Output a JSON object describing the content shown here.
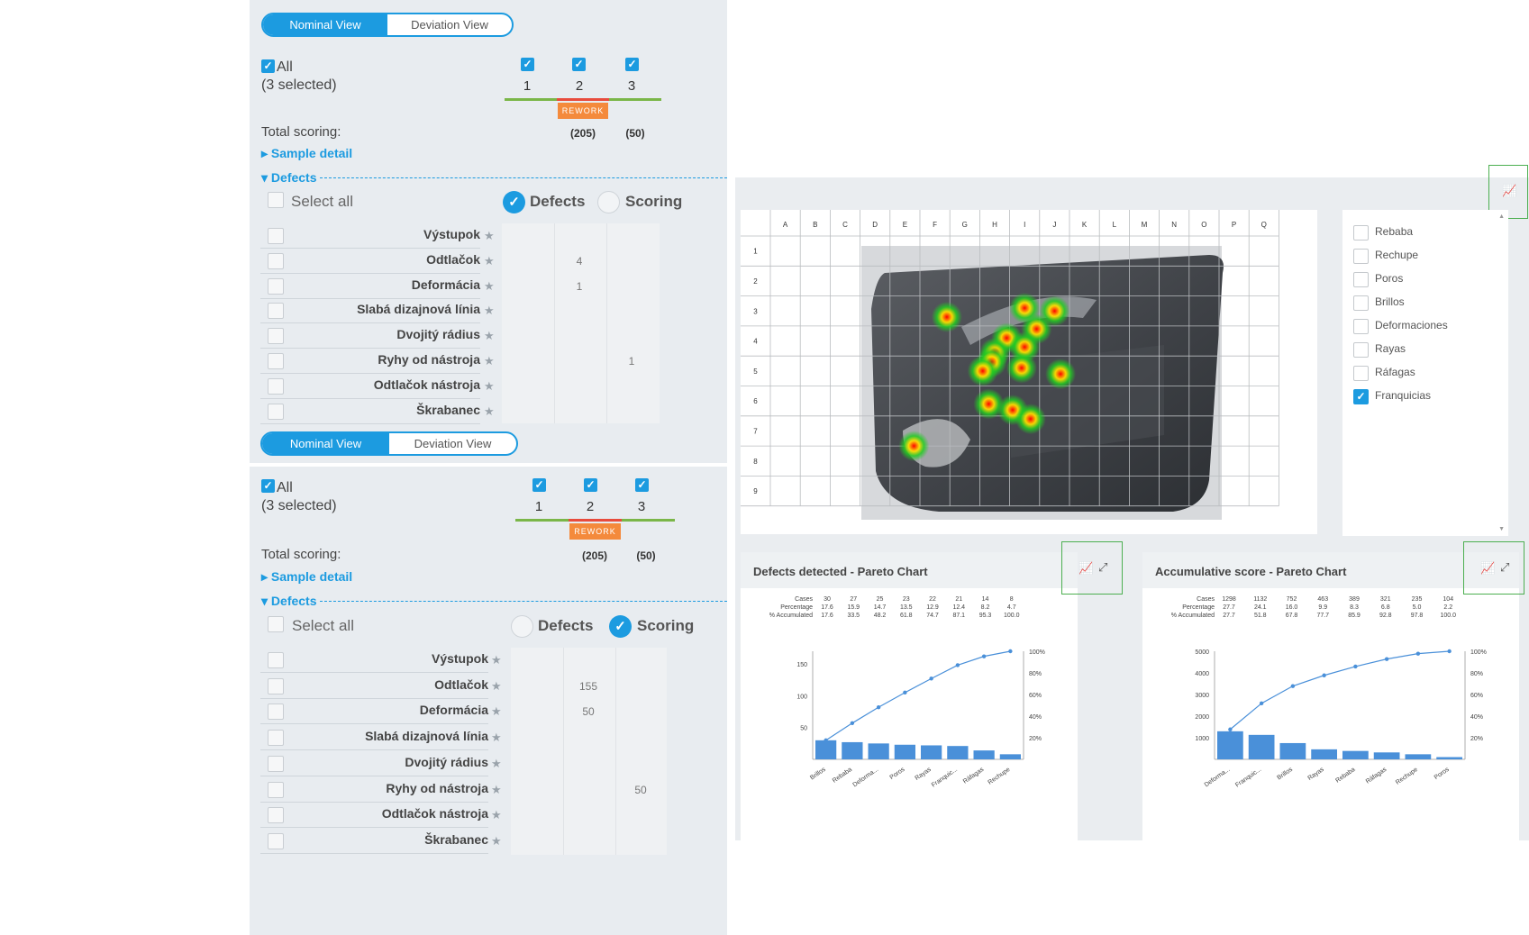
{
  "panels": [
    {
      "toggle": {
        "nominal": "Nominal View",
        "deviation": "Deviation View"
      },
      "all_label": "All",
      "selected_label": "(3 selected)",
      "samples": [
        "1",
        "2",
        "3"
      ],
      "rework": "REWORK",
      "total_label": "Total scoring:",
      "totals": [
        "(205)",
        "(50)"
      ],
      "sample_detail": "Sample detail",
      "defects_header": "Defects",
      "select_all": "Select all",
      "mode_defects": "Defects",
      "mode_scoring": "Scoring",
      "active_mode": "Defects",
      "rows": [
        {
          "name": "Výstupok",
          "values": [
            "",
            "",
            ""
          ]
        },
        {
          "name": "Odtlačok",
          "values": [
            "",
            "4",
            ""
          ]
        },
        {
          "name": "Deformácia",
          "values": [
            "",
            "1",
            ""
          ]
        },
        {
          "name": "Slabá dizajnová línia",
          "values": [
            "",
            "",
            ""
          ]
        },
        {
          "name": "Dvojitý rádius",
          "values": [
            "",
            "",
            ""
          ]
        },
        {
          "name": "Ryhy od nástroja",
          "values": [
            "",
            "",
            "1"
          ]
        },
        {
          "name": "Odtlačok nástroja",
          "values": [
            "",
            "",
            ""
          ]
        },
        {
          "name": "Škrabanec",
          "values": [
            "",
            "",
            ""
          ]
        }
      ]
    },
    {
      "toggle": {
        "nominal": "Nominal View",
        "deviation": "Deviation View"
      },
      "all_label": "All",
      "selected_label": "(3 selected)",
      "samples": [
        "1",
        "2",
        "3"
      ],
      "rework": "REWORK",
      "total_label": "Total scoring:",
      "totals": [
        "(205)",
        "(50)"
      ],
      "sample_detail": "Sample detail",
      "defects_header": "Defects",
      "select_all": "Select all",
      "mode_defects": "Defects",
      "mode_scoring": "Scoring",
      "active_mode": "Scoring",
      "rows": [
        {
          "name": "Výstupok",
          "values": [
            "",
            "",
            ""
          ]
        },
        {
          "name": "Odtlačok",
          "values": [
            "",
            "155",
            ""
          ]
        },
        {
          "name": "Deformácia",
          "values": [
            "",
            "50",
            ""
          ]
        },
        {
          "name": "Slabá dizajnová línia",
          "values": [
            "",
            "",
            ""
          ]
        },
        {
          "name": "Dvojitý rádius",
          "values": [
            "",
            "",
            ""
          ]
        },
        {
          "name": "Ryhy od nástroja",
          "values": [
            "",
            "",
            "50"
          ]
        },
        {
          "name": "Odtlačok nástroja",
          "values": [
            "",
            "",
            ""
          ]
        },
        {
          "name": "Škrabanec",
          "values": [
            "",
            "",
            ""
          ]
        }
      ]
    }
  ],
  "heatmap": {
    "columns": [
      "A",
      "B",
      "C",
      "D",
      "E",
      "F",
      "G",
      "H",
      "I",
      "J",
      "K",
      "L",
      "M",
      "N",
      "O",
      "P",
      "Q"
    ],
    "rows": [
      "1",
      "2",
      "3",
      "4",
      "5",
      "6",
      "7",
      "8",
      "9"
    ],
    "hotspots": [
      {
        "col": 6.4,
        "row": 3.2
      },
      {
        "col": 9.0,
        "row": 2.9
      },
      {
        "col": 10.0,
        "row": 3.0
      },
      {
        "col": 9.4,
        "row": 3.6
      },
      {
        "col": 8.4,
        "row": 3.9
      },
      {
        "col": 9.0,
        "row": 4.2
      },
      {
        "col": 8.0,
        "row": 4.4
      },
      {
        "col": 7.9,
        "row": 4.7
      },
      {
        "col": 7.6,
        "row": 5.0
      },
      {
        "col": 8.9,
        "row": 4.9
      },
      {
        "col": 10.2,
        "row": 5.1
      },
      {
        "col": 7.8,
        "row": 6.1
      },
      {
        "col": 8.6,
        "row": 6.3
      },
      {
        "col": 9.2,
        "row": 6.6
      },
      {
        "col": 5.3,
        "row": 7.5
      }
    ]
  },
  "legend": [
    {
      "label": "Rebaba",
      "checked": false
    },
    {
      "label": "Rechupe",
      "checked": false
    },
    {
      "label": "Poros",
      "checked": false
    },
    {
      "label": "Brillos",
      "checked": false
    },
    {
      "label": "Deformaciones",
      "checked": false
    },
    {
      "label": "Rayas",
      "checked": false
    },
    {
      "label": "Ráfagas",
      "checked": false
    },
    {
      "label": "Franquicias",
      "checked": true
    }
  ],
  "icons": {
    "chart": "line-chart-icon",
    "expand": "expand-icon"
  },
  "colors": {
    "accent": "#1c9be0",
    "bar": "#4a90d9",
    "line": "#4a90d9",
    "rework": "#f48a3c",
    "sample_ok": "#7ab648",
    "sample_bad": "#e84b3c"
  },
  "chart_data": [
    {
      "type": "bar",
      "title": "Defects detected - Pareto Chart",
      "table_labels": [
        "Cases",
        "Percentage",
        "% Accumulated"
      ],
      "categories": [
        "Brillos",
        "Rebaba",
        "Deforma...",
        "Poros",
        "Rayas",
        "Franquic...",
        "Ráfagas",
        "Rechupe"
      ],
      "cases": [
        "30",
        "27",
        "25",
        "23",
        "22",
        "21",
        "14",
        "8"
      ],
      "percentage": [
        "17.6",
        "15.9",
        "14.7",
        "13.5",
        "12.9",
        "12.4",
        "8.2",
        "4.7"
      ],
      "accumulated": [
        "17.6",
        "33.5",
        "48.2",
        "61.8",
        "74.7",
        "87.1",
        "95.3",
        "100.0"
      ],
      "values": [
        30,
        27,
        25,
        23,
        22,
        21,
        14,
        8
      ],
      "accum_values": [
        17.6,
        33.5,
        48.2,
        61.8,
        74.7,
        87.1,
        95.3,
        100.0
      ],
      "yticks": [
        "50",
        "100",
        "150"
      ],
      "y2ticks": [
        "20%",
        "40%",
        "60%",
        "80%",
        "100%"
      ],
      "ylim": [
        0,
        170
      ],
      "y2lim": [
        0,
        100
      ]
    },
    {
      "type": "bar",
      "title": "Accumulative score - Pareto Chart",
      "table_labels": [
        "Cases",
        "Percentage",
        "% Accumulated"
      ],
      "categories": [
        "Deforma...",
        "Franquic...",
        "Brillos",
        "Rayas",
        "Rebaba",
        "Ráfagas",
        "Rechupe",
        "Poros"
      ],
      "cases": [
        "1298",
        "1132",
        "752",
        "463",
        "389",
        "321",
        "235",
        "104"
      ],
      "percentage": [
        "27.7",
        "24.1",
        "16.0",
        "9.9",
        "8.3",
        "6.8",
        "5.0",
        "2.2"
      ],
      "accumulated": [
        "27.7",
        "51.8",
        "67.8",
        "77.7",
        "85.9",
        "92.8",
        "97.8",
        "100.0"
      ],
      "values": [
        1298,
        1132,
        752,
        463,
        389,
        321,
        235,
        104
      ],
      "accum_values": [
        27.7,
        51.8,
        67.8,
        77.7,
        85.9,
        92.8,
        97.8,
        100.0
      ],
      "yticks": [
        "1000",
        "2000",
        "3000",
        "4000",
        "5000"
      ],
      "y2ticks": [
        "20%",
        "40%",
        "60%",
        "80%",
        "100%"
      ],
      "ylim": [
        0,
        5000
      ],
      "y2lim": [
        0,
        100
      ]
    }
  ]
}
